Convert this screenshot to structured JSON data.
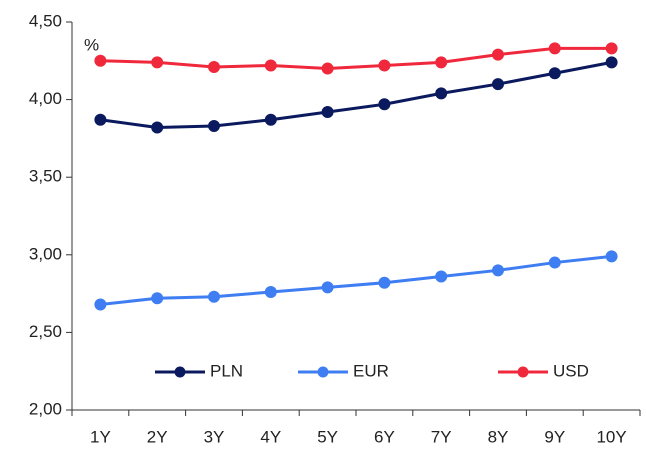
{
  "chart_data": {
    "type": "line",
    "annotations": [
      "%"
    ],
    "categories": [
      "1Y",
      "2Y",
      "3Y",
      "4Y",
      "5Y",
      "6Y",
      "7Y",
      "8Y",
      "9Y",
      "10Y"
    ],
    "series": [
      {
        "name": "PLN",
        "color": "#0b1a5e",
        "values": [
          3.87,
          3.82,
          3.83,
          3.87,
          3.92,
          3.97,
          4.04,
          4.1,
          4.17,
          4.24
        ]
      },
      {
        "name": "EUR",
        "color": "#3f7ef2",
        "values": [
          2.68,
          2.72,
          2.73,
          2.76,
          2.79,
          2.82,
          2.86,
          2.9,
          2.95,
          2.99
        ]
      },
      {
        "name": "USD",
        "color": "#f0283c",
        "values": [
          4.25,
          4.24,
          4.21,
          4.22,
          4.2,
          4.22,
          4.24,
          4.29,
          4.33,
          4.33
        ]
      }
    ],
    "ylim": [
      2.0,
      4.5
    ],
    "yticks": [
      {
        "value": 2.0,
        "label": "2,00"
      },
      {
        "value": 2.5,
        "label": "2,50"
      },
      {
        "value": 3.0,
        "label": "3,00"
      },
      {
        "value": 3.5,
        "label": "3,50"
      },
      {
        "value": 4.0,
        "label": "4,00"
      },
      {
        "value": 4.5,
        "label": "4,50"
      }
    ],
    "grid": false,
    "legend": "bottom"
  }
}
